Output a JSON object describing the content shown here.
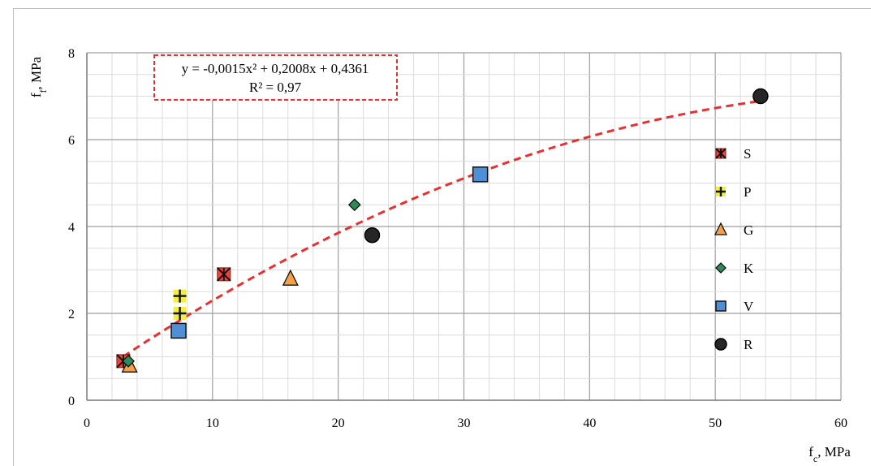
{
  "chart_data": {
    "type": "scatter",
    "title": "",
    "xlabel": "f_c, MPa",
    "ylabel": "f_f, MPa",
    "xlim": [
      0,
      60
    ],
    "ylim": [
      0,
      8
    ],
    "x_ticks": [
      0,
      10,
      20,
      30,
      40,
      50,
      60
    ],
    "y_ticks": [
      0,
      2,
      4,
      6,
      8
    ],
    "grid": true,
    "legend_position": "right",
    "series": [
      {
        "name": "S",
        "marker": "x-square",
        "color": "#e8463c",
        "points": [
          [
            2.9,
            0.9
          ],
          [
            10.9,
            2.9
          ]
        ]
      },
      {
        "name": "P",
        "marker": "plus",
        "color": "#f3ef40",
        "points": [
          [
            7.4,
            2.0
          ],
          [
            7.4,
            2.4
          ]
        ]
      },
      {
        "name": "G",
        "marker": "triangle",
        "color": "#f5a04a",
        "points": [
          [
            3.4,
            0.8
          ],
          [
            16.2,
            2.8
          ]
        ]
      },
      {
        "name": "K",
        "marker": "diamond",
        "color": "#2e8b57",
        "points": [
          [
            3.3,
            0.9
          ],
          [
            21.3,
            4.5
          ]
        ]
      },
      {
        "name": "V",
        "marker": "square",
        "color": "#4f8fd6",
        "points": [
          [
            7.3,
            1.6
          ],
          [
            31.3,
            5.2
          ]
        ]
      },
      {
        "name": "R",
        "marker": "circle",
        "color": "#262626",
        "points": [
          [
            22.7,
            3.8
          ],
          [
            53.6,
            7.0
          ]
        ]
      }
    ],
    "trendline": {
      "type": "polynomial",
      "coefficients": [
        -0.0015,
        0.2008,
        0.4361
      ],
      "x_range": [
        2.9,
        53.6
      ],
      "color": "#e83030",
      "equation_text": "y = -0,0015x² + 0,2008x + 0,4361",
      "r2_text": "R² = 0,97"
    }
  }
}
